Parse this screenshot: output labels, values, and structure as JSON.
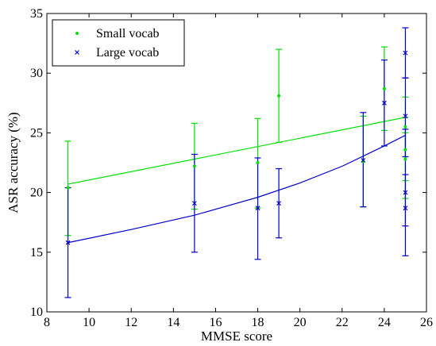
{
  "chart_data": {
    "type": "scatter",
    "xlabel": "MMSE score",
    "ylabel": "ASR accuracy (%)",
    "xlim": [
      8,
      26
    ],
    "ylim": [
      10,
      35
    ],
    "xticks": [
      8,
      10,
      12,
      14,
      16,
      18,
      20,
      22,
      24,
      26
    ],
    "yticks": [
      10,
      15,
      20,
      25,
      30,
      35
    ],
    "grid": false,
    "legend_position": "top-left",
    "series": [
      {
        "name": "Small vocab",
        "color": "#00e000",
        "marker": "dot",
        "points": [
          {
            "x": 9,
            "y": 20.4,
            "low": 16.4,
            "high": 24.3
          },
          {
            "x": 15,
            "y": 22.2,
            "low": 18.6,
            "high": 25.8
          },
          {
            "x": 18,
            "y": 22.5,
            "low": 18.7,
            "high": 26.2
          },
          {
            "x": 19,
            "y": 28.1,
            "low": 24.2,
            "high": 32.0
          },
          {
            "x": 23,
            "y": 22.6,
            "low": 18.8,
            "high": 26.4
          },
          {
            "x": 24,
            "y": 28.7,
            "low": 25.2,
            "high": 32.2
          },
          {
            "x": 25,
            "y": 23.6,
            "low": 21.0,
            "high": 26.3
          },
          {
            "x": 25,
            "y": 25.5,
            "low": 23.0,
            "high": 28.0
          },
          {
            "x": 25,
            "y": 22.8,
            "low": 19.5,
            "high": 25.0
          }
        ],
        "fit": [
          {
            "x": 9,
            "y": 20.7
          },
          {
            "x": 25,
            "y": 26.3
          }
        ]
      },
      {
        "name": "Large vocab",
        "color": "#0000c8",
        "marker": "x",
        "points": [
          {
            "x": 9,
            "y": 15.8,
            "low": 11.2,
            "high": 20.4
          },
          {
            "x": 15,
            "y": 19.1,
            "low": 15.0,
            "high": 23.2
          },
          {
            "x": 18,
            "y": 18.7,
            "low": 14.4,
            "high": 22.9
          },
          {
            "x": 19,
            "y": 19.1,
            "low": 16.2,
            "high": 22.0
          },
          {
            "x": 23,
            "y": 22.7,
            "low": 18.8,
            "high": 26.7
          },
          {
            "x": 24,
            "y": 27.5,
            "low": 23.9,
            "high": 31.1
          },
          {
            "x": 25,
            "y": 31.7,
            "low": 29.6,
            "high": 33.8
          },
          {
            "x": 25,
            "y": 26.4,
            "low": 23.0,
            "high": 29.6
          },
          {
            "x": 25,
            "y": 20.0,
            "low": 14.7,
            "high": 25.3
          },
          {
            "x": 25,
            "y": 18.7,
            "low": 17.2,
            "high": 21.5
          }
        ],
        "fit": [
          {
            "x": 9,
            "y": 15.8
          },
          {
            "x": 12,
            "y": 16.9
          },
          {
            "x": 15,
            "y": 18.1
          },
          {
            "x": 18,
            "y": 19.6
          },
          {
            "x": 20,
            "y": 20.8
          },
          {
            "x": 22,
            "y": 22.2
          },
          {
            "x": 24,
            "y": 23.9
          },
          {
            "x": 25,
            "y": 24.8
          }
        ]
      }
    ]
  }
}
